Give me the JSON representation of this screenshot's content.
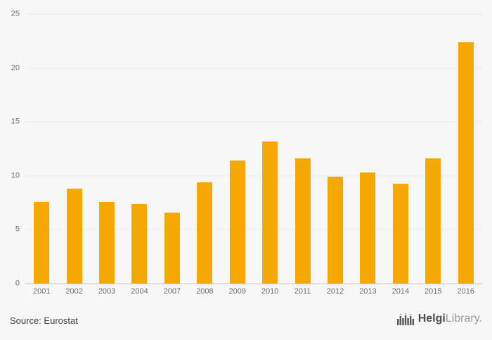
{
  "chart_data": {
    "type": "bar",
    "title": "",
    "xlabel": "",
    "ylabel": "",
    "categories": [
      "2001",
      "2002",
      "2003",
      "2004",
      "2007",
      "2008",
      "2009",
      "2010",
      "2011",
      "2012",
      "2013",
      "2014",
      "2015",
      "2016"
    ],
    "values": [
      7.6,
      8.8,
      7.6,
      7.4,
      6.6,
      9.4,
      11.4,
      13.2,
      11.6,
      9.9,
      10.3,
      9.3,
      11.6,
      22.4
    ],
    "ylim": [
      0,
      25
    ],
    "yticks": [
      0,
      5,
      10,
      15,
      20,
      25
    ],
    "bar_color": "#F5A800",
    "grid": true,
    "legend": false,
    "background_color": "#f7f7f7"
  },
  "footer": {
    "source_label": "Source: Eurostat",
    "logo": {
      "icon": "helgi-bridge-logo-icon",
      "brand_primary": "Helgi",
      "brand_secondary": "Library."
    }
  }
}
